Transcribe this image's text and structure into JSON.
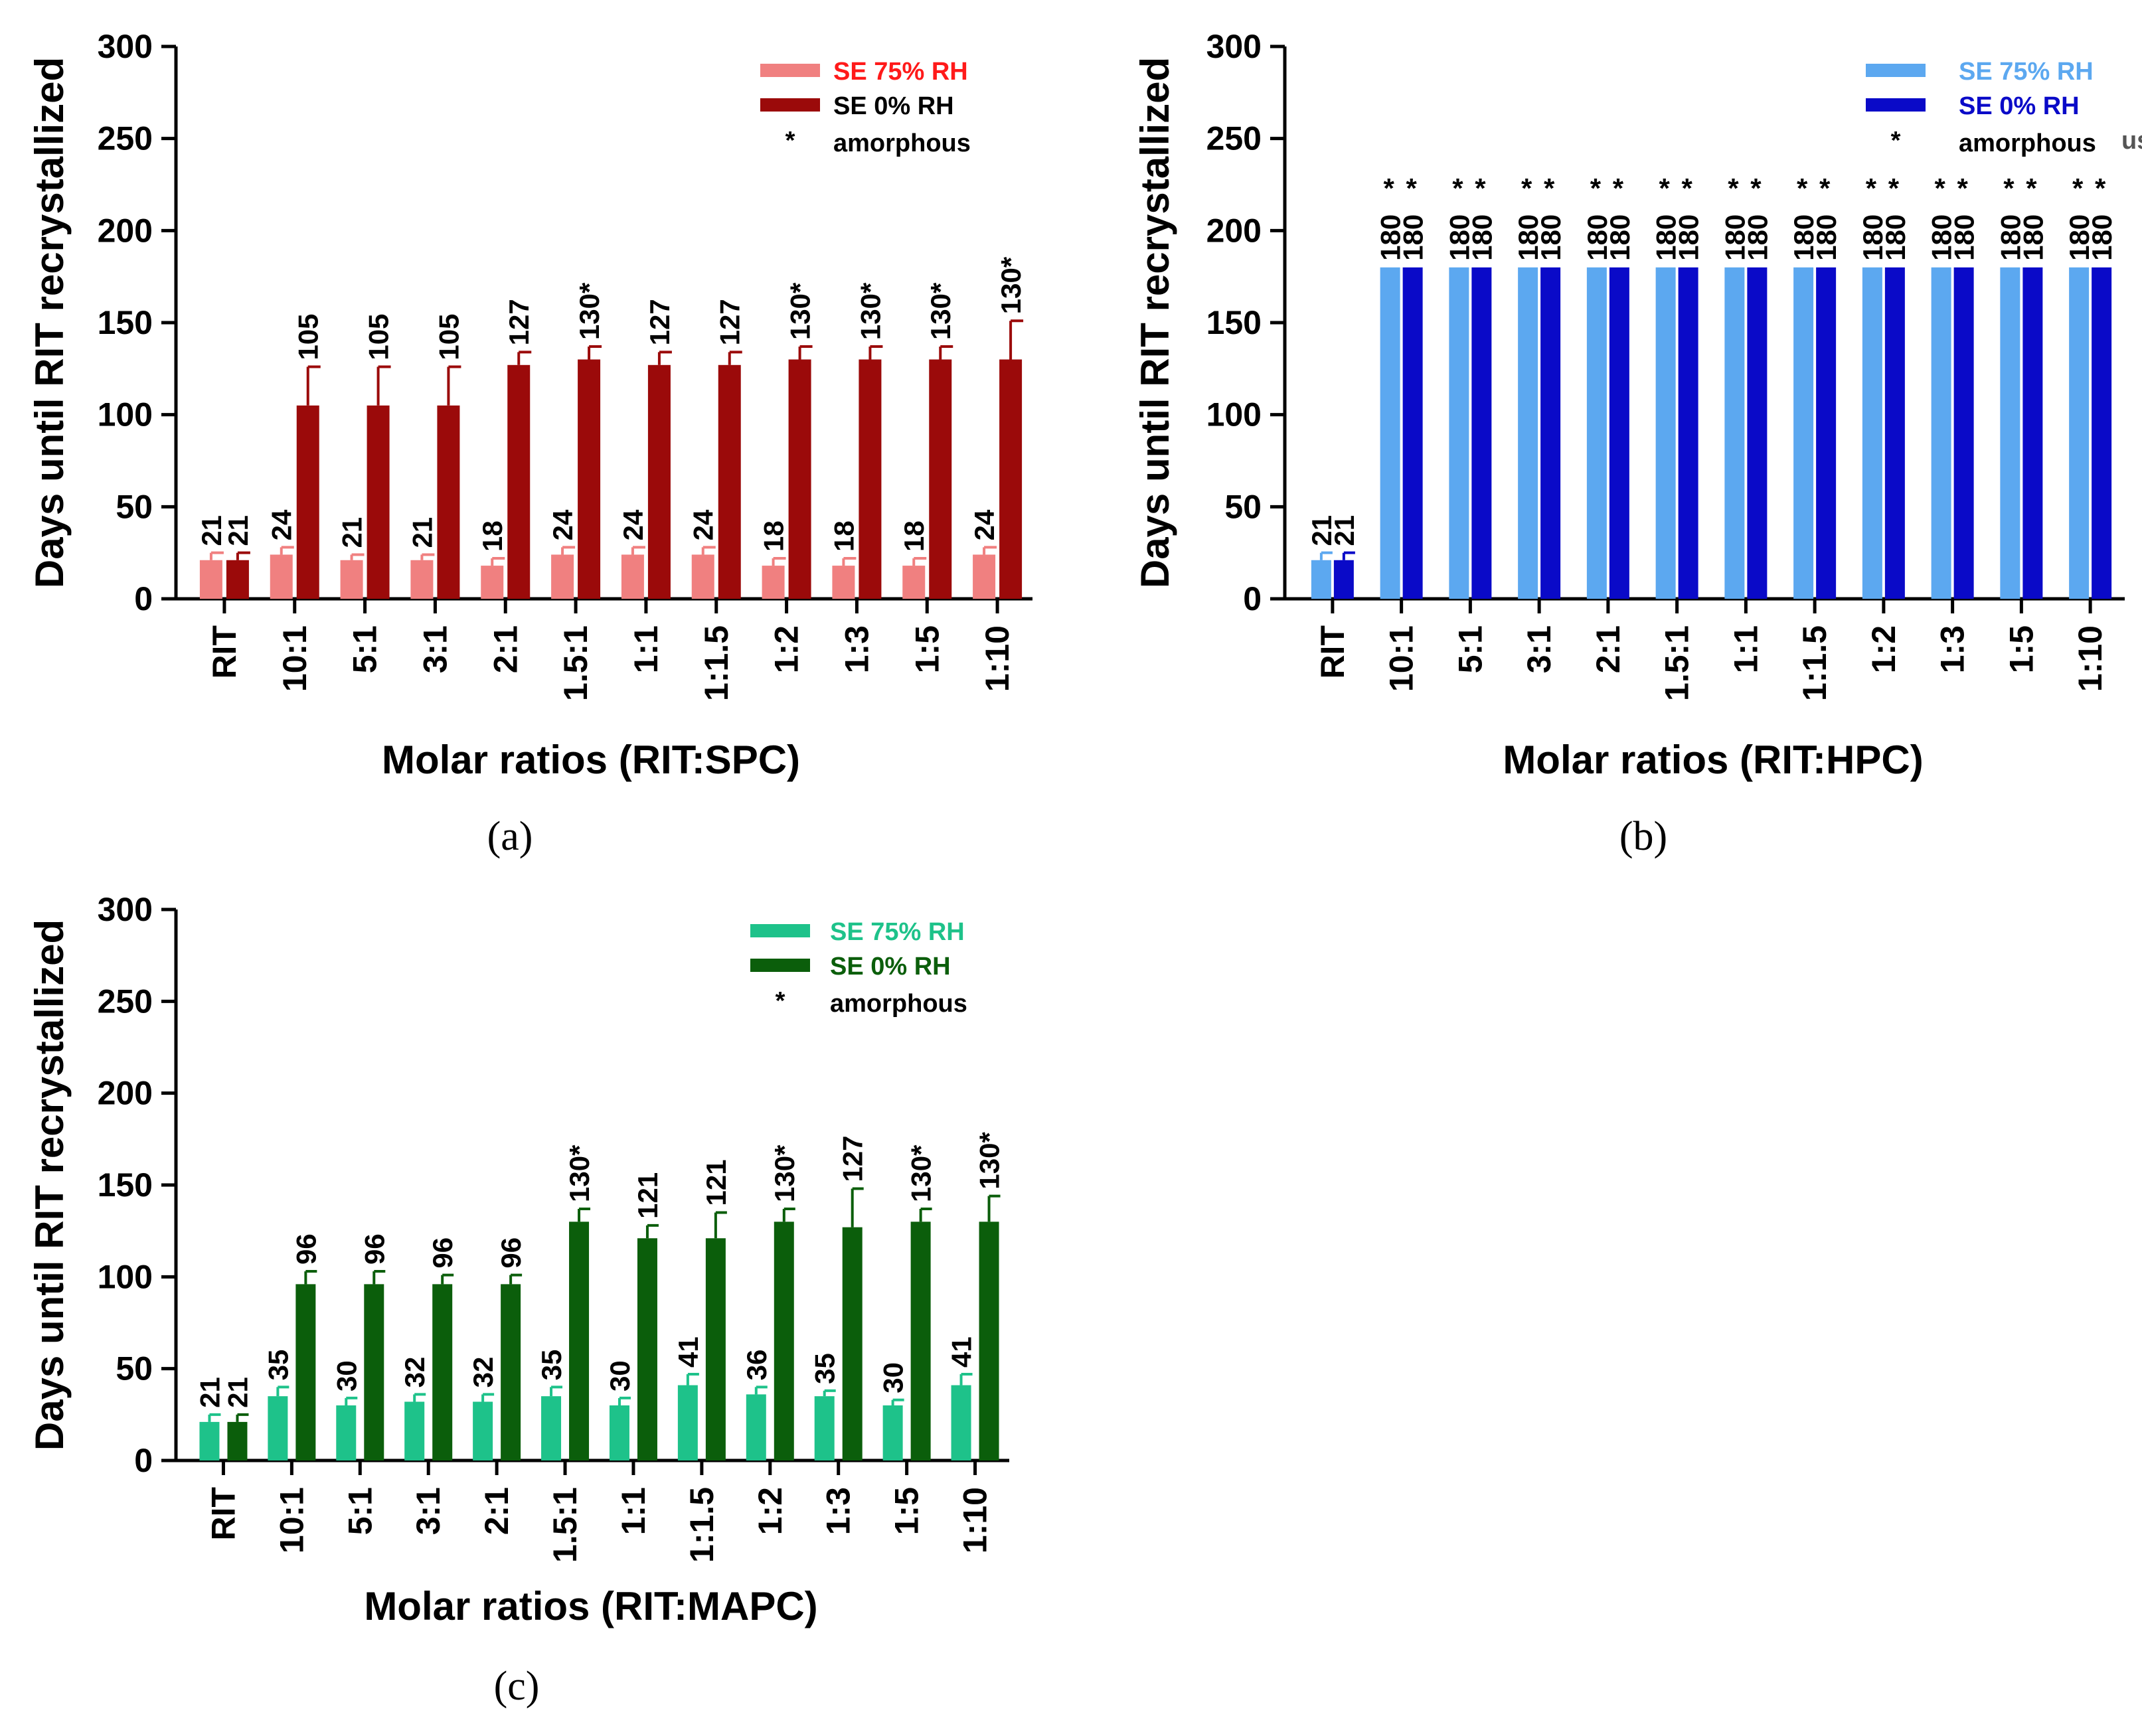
{
  "chart_data": [
    {
      "panel": "a",
      "type": "bar",
      "title": "",
      "ylabel": "Days until RIT recrystallized",
      "xlabel": "Molar ratios (RIT:SPC)",
      "ylim": [
        0,
        300
      ],
      "yticks": [
        0,
        50,
        100,
        150,
        200,
        250,
        300
      ],
      "categories": [
        "RIT",
        "10:1",
        "5:1",
        "3:1",
        "2:1",
        "1.5:1",
        "1:1",
        "1:1.5",
        "1:2",
        "1:3",
        "1:5",
        "1:10"
      ],
      "series": [
        {
          "name": "SE 75% RH",
          "color": "#f08080",
          "legend_text_color": "#ff1a1a",
          "values": [
            21,
            24,
            21,
            21,
            18,
            24,
            24,
            24,
            18,
            18,
            18,
            24
          ],
          "errors": [
            4,
            4,
            3,
            3,
            4,
            4,
            4,
            4,
            4,
            4,
            4,
            4
          ],
          "labels": [
            "21",
            "24",
            "21",
            "21",
            "18",
            "24",
            "24",
            "24",
            "18",
            "18",
            "18",
            "24"
          ]
        },
        {
          "name": "SE   0% RH",
          "color": "#9b0a0a",
          "legend_text_color": "#000000",
          "values": [
            21,
            105,
            105,
            105,
            127,
            130,
            127,
            127,
            130,
            130,
            130,
            130
          ],
          "errors": [
            4,
            21,
            21,
            21,
            7,
            7,
            7,
            7,
            7,
            7,
            7,
            21
          ],
          "labels": [
            "21",
            "105",
            "105",
            "105",
            "127",
            "130*",
            "127",
            "127",
            "130*",
            "130*",
            "130*",
            "130*"
          ]
        }
      ],
      "legend_note": "amorphous",
      "legend_marker": "*",
      "panel_label": "(a)"
    },
    {
      "panel": "b",
      "type": "bar",
      "title": "",
      "ylabel": "Days until RIT recrystallized",
      "xlabel": "Molar ratios (RIT:HPC)",
      "ylim": [
        0,
        300
      ],
      "yticks": [
        0,
        50,
        100,
        150,
        200,
        250,
        300
      ],
      "categories": [
        "RIT",
        "10:1",
        "5:1",
        "3:1",
        "2:1",
        "1.5:1",
        "1:1",
        "1:1.5",
        "1:2",
        "1:3",
        "1:5",
        "1:10"
      ],
      "series": [
        {
          "name": "SE 75% RH",
          "color": "#5ca8f0",
          "legend_text_color": "#5ca8f0",
          "values": [
            21,
            180,
            180,
            180,
            180,
            180,
            180,
            180,
            180,
            180,
            180,
            180
          ],
          "errors": [
            4,
            0,
            0,
            0,
            0,
            0,
            0,
            0,
            0,
            0,
            0,
            0
          ],
          "labels": [
            "21",
            "180",
            "180",
            "180",
            "180",
            "180",
            "180",
            "180",
            "180",
            "180",
            "180",
            "180"
          ],
          "stars": [
            false,
            true,
            true,
            true,
            true,
            true,
            true,
            true,
            true,
            true,
            true,
            true
          ]
        },
        {
          "name": "SE   0% RH",
          "color": "#0a0ac8",
          "legend_text_color": "#0a0ac8",
          "values": [
            21,
            180,
            180,
            180,
            180,
            180,
            180,
            180,
            180,
            180,
            180,
            180
          ],
          "errors": [
            4,
            0,
            0,
            0,
            0,
            0,
            0,
            0,
            0,
            0,
            0,
            0
          ],
          "labels": [
            "21",
            "180",
            "180",
            "180",
            "180",
            "180",
            "180",
            "180",
            "180",
            "180",
            "180",
            "180"
          ],
          "stars": [
            false,
            true,
            true,
            true,
            true,
            true,
            true,
            true,
            true,
            true,
            true,
            true
          ]
        }
      ],
      "legend_note": "amorphous",
      "legend_note_fragment": "us",
      "legend_marker": "*",
      "panel_label": "(b)"
    },
    {
      "panel": "c",
      "type": "bar",
      "title": "",
      "ylabel": "Days until RIT recrystallized",
      "xlabel": "Molar ratios (RIT:MAPC)",
      "ylim": [
        0,
        300
      ],
      "yticks": [
        0,
        50,
        100,
        150,
        200,
        250,
        300
      ],
      "categories": [
        "RIT",
        "10:1",
        "5:1",
        "3:1",
        "2:1",
        "1.5:1",
        "1:1",
        "1:1.5",
        "1:2",
        "1:3",
        "1:5",
        "1:10"
      ],
      "series": [
        {
          "name": "SE 75% RH",
          "color": "#1ec28a",
          "legend_text_color": "#1ec28a",
          "values": [
            21,
            35,
            30,
            32,
            32,
            35,
            30,
            41,
            36,
            35,
            30,
            41
          ],
          "errors": [
            4,
            5,
            4,
            4,
            4,
            5,
            4,
            6,
            4,
            3,
            3,
            6
          ],
          "labels": [
            "21",
            "35",
            "30",
            "32",
            "32",
            "35",
            "30",
            "41",
            "36",
            "35",
            "30",
            "41"
          ]
        },
        {
          "name": "SE   0% RH",
          "color": "#0b5e0b",
          "legend_text_color": "#0b5e0b",
          "values": [
            21,
            96,
            96,
            96,
            96,
            130,
            121,
            121,
            130,
            127,
            130,
            130
          ],
          "errors": [
            4,
            7,
            7,
            5,
            5,
            7,
            7,
            14,
            7,
            21,
            7,
            14
          ],
          "labels": [
            "21",
            "96",
            "96",
            "96",
            "96",
            "130*",
            "121",
            "121",
            "130*",
            "127",
            "130*",
            "130*"
          ]
        }
      ],
      "legend_note": "amorphous",
      "legend_marker": "*",
      "panel_label": "(c)"
    }
  ]
}
